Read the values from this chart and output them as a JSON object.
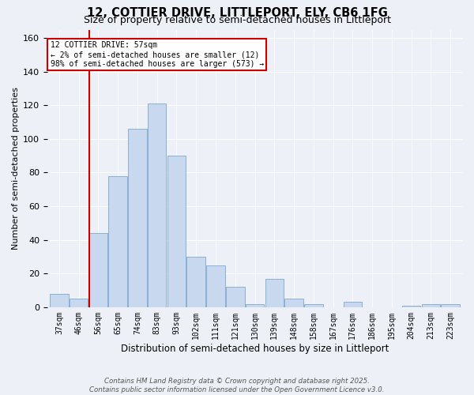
{
  "title1": "12, COTTIER DRIVE, LITTLEPORT, ELY, CB6 1FG",
  "title2": "Size of property relative to semi-detached houses in Littleport",
  "xlabel": "Distribution of semi-detached houses by size in Littleport",
  "ylabel": "Number of semi-detached properties",
  "annotation_title": "12 COTTIER DRIVE: 57sqm",
  "annotation_line1": "← 2% of semi-detached houses are smaller (12)",
  "annotation_line2": "98% of semi-detached houses are larger (573) →",
  "footer1": "Contains HM Land Registry data © Crown copyright and database right 2025.",
  "footer2": "Contains public sector information licensed under the Open Government Licence v3.0.",
  "bar_color": "#c8d9ef",
  "bar_edge_color": "#8ab0d4",
  "vline_color": "#cc0000",
  "vline_x_idx": 2,
  "categories": [
    "37sqm",
    "46sqm",
    "56sqm",
    "65sqm",
    "74sqm",
    "83sqm",
    "93sqm",
    "102sqm",
    "111sqm",
    "121sqm",
    "130sqm",
    "139sqm",
    "148sqm",
    "158sqm",
    "167sqm",
    "176sqm",
    "186sqm",
    "195sqm",
    "204sqm",
    "213sqm",
    "223sqm"
  ],
  "values": [
    8,
    5,
    44,
    78,
    106,
    121,
    90,
    30,
    25,
    12,
    2,
    17,
    5,
    2,
    0,
    3,
    0,
    0,
    1,
    2,
    2
  ],
  "ylim": [
    0,
    165
  ],
  "yticks": [
    0,
    20,
    40,
    60,
    80,
    100,
    120,
    140,
    160
  ],
  "box_color": "#cc0000",
  "background_color": "#edf1f7",
  "grid_color": "#ffffff",
  "title1_fontsize": 10.5,
  "title2_fontsize": 9
}
